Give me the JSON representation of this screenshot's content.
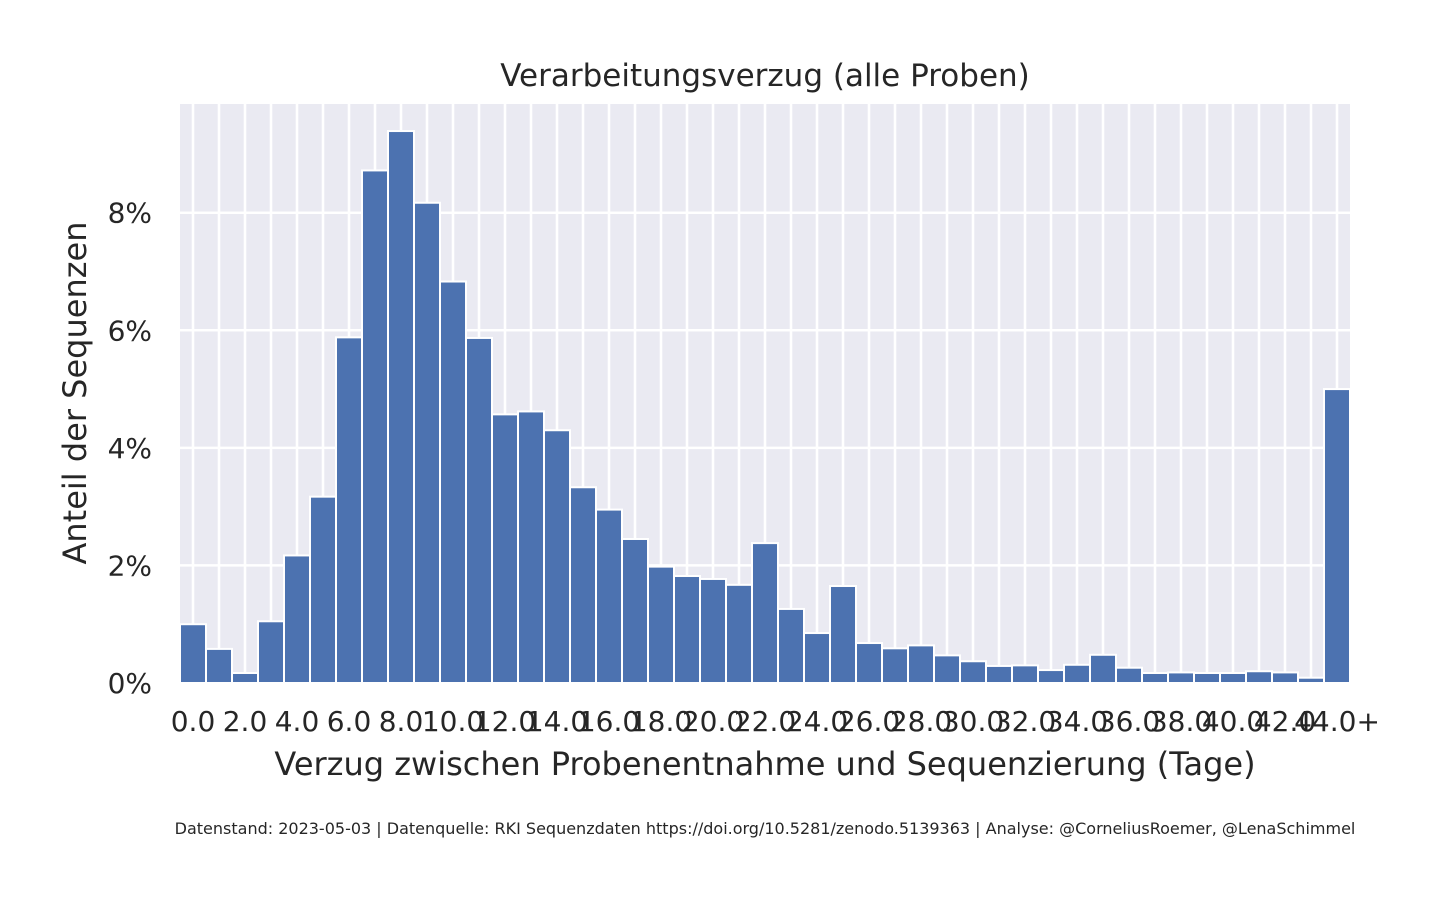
{
  "chart_data": {
    "type": "bar",
    "title": "Verarbeitungsverzug (alle Proben)",
    "xlabel": "Verzug zwischen Probenentnahme und Sequenzierung (Tage)",
    "ylabel": "Anteil der Sequenzen",
    "x_tick_labels": [
      "0.0",
      "2.0",
      "4.0",
      "6.0",
      "8.0",
      "10.0",
      "12.0",
      "14.0",
      "16.0",
      "18.0",
      "20.0",
      "22.0",
      "24.0",
      "26.0",
      "28.0",
      "30.0",
      "32.0",
      "34.0",
      "36.0",
      "38.0",
      "40.0",
      "42.0",
      "44.0+"
    ],
    "y_tick_labels": [
      "0%",
      "2%",
      "4%",
      "6%",
      "8%"
    ],
    "y_ticks": [
      0,
      2,
      4,
      6,
      8
    ],
    "ylim": [
      0,
      9.85
    ],
    "y_unit": "%",
    "bin_width_days": 1,
    "x_range": [
      0,
      45
    ],
    "categories": [
      "0",
      "1",
      "2",
      "3",
      "4",
      "5",
      "6",
      "7",
      "8",
      "9",
      "10",
      "11",
      "12",
      "13",
      "14",
      "15",
      "16",
      "17",
      "18",
      "19",
      "20",
      "21",
      "22",
      "23",
      "24",
      "25",
      "26",
      "27",
      "28",
      "29",
      "30",
      "31",
      "32",
      "33",
      "34",
      "35",
      "36",
      "37",
      "38",
      "39",
      "40",
      "41",
      "42",
      "43",
      "44+"
    ],
    "values": [
      1.0,
      0.58,
      0.17,
      1.05,
      2.17,
      3.17,
      5.88,
      8.72,
      9.39,
      8.17,
      6.83,
      5.87,
      4.57,
      4.62,
      4.3,
      3.33,
      2.95,
      2.45,
      1.98,
      1.82,
      1.77,
      1.67,
      2.38,
      1.26,
      0.85,
      1.65,
      0.68,
      0.59,
      0.64,
      0.47,
      0.37,
      0.29,
      0.3,
      0.22,
      0.31,
      0.48,
      0.26,
      0.17,
      0.18,
      0.17,
      0.17,
      0.2,
      0.18,
      0.09,
      5.0
    ],
    "grid": true,
    "colors": {
      "bar": "#4c72b0",
      "plot_background": "#eaeaf2",
      "grid": "#ffffff",
      "text": "#262626"
    }
  },
  "footer": {
    "source_text": "Datenstand: 2023-05-03 | Datenquelle: RKI Sequenzdaten https://doi.org/10.5281/zenodo.5139363 | Analyse: @CorneliusRoemer, @LenaSchimmel"
  }
}
